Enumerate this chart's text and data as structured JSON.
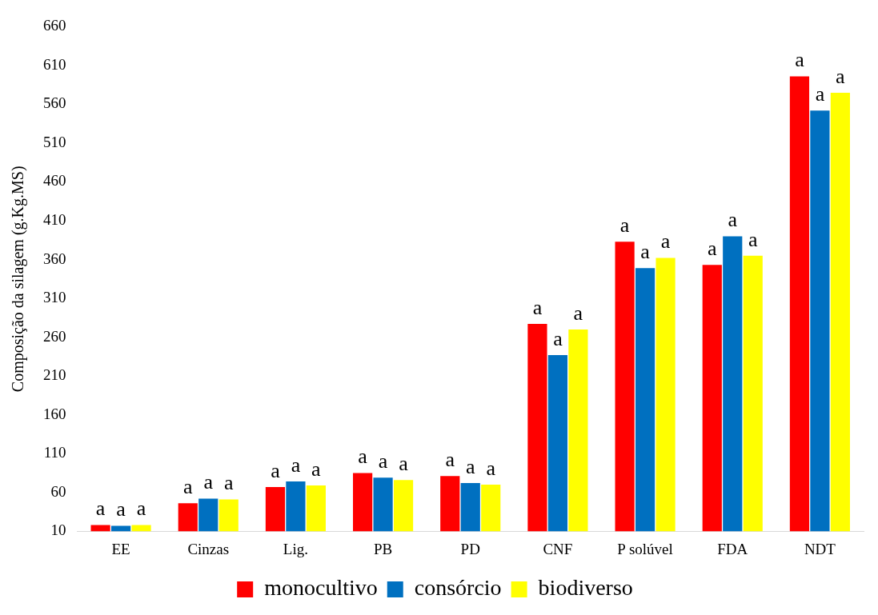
{
  "chart_data": {
    "type": "bar",
    "ylabel": "Composição da silagem (g.Kg.MS)",
    "categories": [
      "EE",
      "Cinzas",
      "Lig.",
      "PB",
      "PD",
      "CNF",
      "P solúvel",
      "FDA",
      "NDT"
    ],
    "series": [
      {
        "name": "monocultivo",
        "color": "#ff0000",
        "values": [
          18,
          46,
          67,
          85,
          81,
          277,
          383,
          353,
          596
        ],
        "value_labels": [
          "a",
          "a",
          "a",
          "a",
          "a",
          "a",
          "a",
          "a",
          "a"
        ]
      },
      {
        "name": "consórcio",
        "color": "#0070c0",
        "values": [
          17,
          52,
          74,
          79,
          72,
          237,
          349,
          390,
          552
        ],
        "value_labels": [
          "a",
          "a",
          "a",
          "a",
          "a",
          "a",
          "a",
          "a",
          "a"
        ]
      },
      {
        "name": "biodiverso",
        "color": "#ffff00",
        "values": [
          18,
          51,
          69,
          76,
          70,
          270,
          362,
          365,
          575
        ],
        "value_labels": [
          "a",
          "a",
          "a",
          "a",
          "a",
          "a",
          "a",
          "a",
          "a"
        ]
      }
    ],
    "ylim": [
      10,
      660
    ],
    "yticks": [
      10,
      60,
      110,
      160,
      210,
      260,
      310,
      360,
      410,
      460,
      510,
      560,
      610,
      660
    ],
    "grid": false,
    "legend": "bottom"
  }
}
